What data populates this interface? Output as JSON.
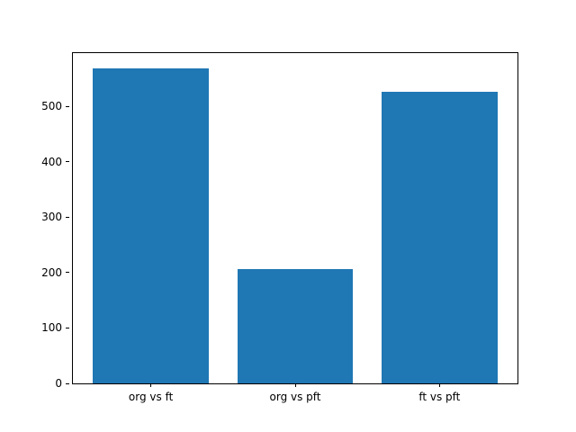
{
  "chart_data": {
    "type": "bar",
    "categories": [
      "org vs ft",
      "org vs pft",
      "ft vs pft"
    ],
    "values": [
      568,
      206,
      526
    ],
    "title": "",
    "xlabel": "",
    "ylabel": "",
    "ylim": [
      0,
      596
    ],
    "yticks": [
      0,
      100,
      200,
      300,
      400,
      500
    ],
    "bar_color": "#1f77b4",
    "background_color": "#ffffff",
    "axis_color": "#000000",
    "grid": false,
    "legend_position": "none"
  }
}
